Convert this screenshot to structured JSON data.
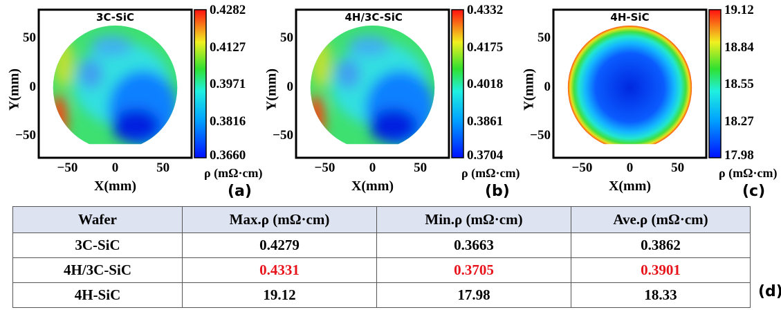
{
  "chart_data": [
    {
      "type": "heatmap",
      "panel_label": "(a)",
      "title": "3C-SiC",
      "xlabel": "X(mm)",
      "ylabel": "Y(mm)",
      "xlim": [
        -80,
        80
      ],
      "ylim": [
        -72,
        80
      ],
      "xticks": [
        "-50",
        "0",
        "50"
      ],
      "yticks": [
        "50",
        "0",
        "-50"
      ],
      "colorbar": {
        "label": "ρ (mΩ·cm)",
        "ticks": [
          "0.4282",
          "0.4127",
          "0.3971",
          "0.3816",
          "0.3660"
        ],
        "min": 0.366,
        "max": 0.4282,
        "colormap": "jet"
      },
      "pattern": "low-bottom-right"
    },
    {
      "type": "heatmap",
      "panel_label": "(b)",
      "title": "4H/3C-SiC",
      "xlabel": "X(mm)",
      "ylabel": "Y(mm)",
      "xlim": [
        -80,
        80
      ],
      "ylim": [
        -72,
        80
      ],
      "xticks": [
        "-50",
        "0",
        "50"
      ],
      "yticks": [
        "50",
        "0",
        "-50"
      ],
      "colorbar": {
        "label": "ρ (mΩ·cm)",
        "ticks": [
          "0.4332",
          "0.4175",
          "0.4018",
          "0.3861",
          "0.3704"
        ],
        "min": 0.3704,
        "max": 0.4332,
        "colormap": "jet"
      },
      "pattern": "low-bottom-right"
    },
    {
      "type": "heatmap",
      "panel_label": "(c)",
      "title": "4H-SiC",
      "xlabel": "X(mm)",
      "ylabel": "Y(mm)",
      "xlim": [
        -80,
        80
      ],
      "ylim": [
        -72,
        80
      ],
      "xticks": [
        "-50",
        "0",
        "50"
      ],
      "yticks": [
        "50",
        "0",
        "-50"
      ],
      "colorbar": {
        "label": "ρ (mΩ·cm)",
        "ticks": [
          "19.12",
          "18.84",
          "18.55",
          "18.27",
          "17.98"
        ],
        "min": 17.98,
        "max": 19.12,
        "colormap": "jet"
      },
      "pattern": "radial-low-center"
    }
  ],
  "table": {
    "label": "(d)",
    "headers": [
      "Wafer",
      "Max.ρ (mΩ·cm)",
      "Min.ρ (mΩ·cm)",
      "Ave.ρ (mΩ·cm)"
    ],
    "rows": [
      {
        "cells": [
          "3C-SiC",
          "0.4279",
          "0.3663",
          "0.3862"
        ],
        "highlight": false
      },
      {
        "cells": [
          "4H/3C-SiC",
          "0.4331",
          "0.3705",
          "0.3901"
        ],
        "highlight": true
      },
      {
        "cells": [
          "4H-SiC",
          "19.12",
          "17.98",
          "18.33"
        ],
        "highlight": false
      }
    ],
    "header_bg": "#dde3f0",
    "highlight_color": "#e8141b"
  }
}
